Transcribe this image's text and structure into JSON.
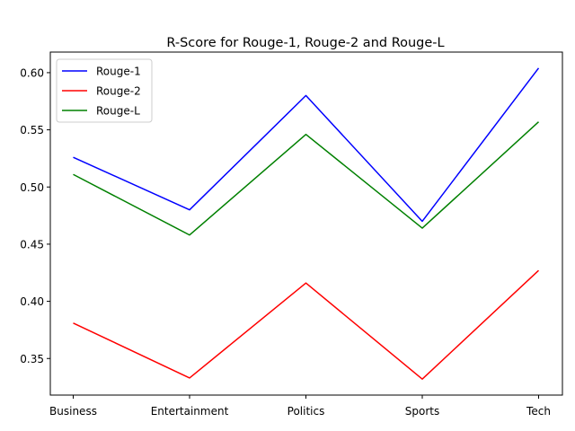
{
  "chart_data": {
    "type": "line",
    "title": "R-Score for Rouge-1, Rouge-2 and Rouge-L",
    "xlabel": "",
    "ylabel": "",
    "categories": [
      "Business",
      "Entertainment",
      "Politics",
      "Sports",
      "Tech"
    ],
    "ylim": [
      0.318,
      0.618
    ],
    "yticks": [
      "0.35",
      "0.40",
      "0.45",
      "0.50",
      "0.55",
      "0.60"
    ],
    "grid": false,
    "legend_position": "upper-left",
    "series": [
      {
        "name": "Rouge-1",
        "color": "#0000ff",
        "values": [
          0.526,
          0.48,
          0.58,
          0.47,
          0.604
        ]
      },
      {
        "name": "Rouge-2",
        "color": "#ff0000",
        "values": [
          0.381,
          0.333,
          0.416,
          0.332,
          0.427
        ]
      },
      {
        "name": "Rouge-L",
        "color": "#008000",
        "values": [
          0.511,
          0.458,
          0.546,
          0.464,
          0.557
        ]
      }
    ]
  }
}
